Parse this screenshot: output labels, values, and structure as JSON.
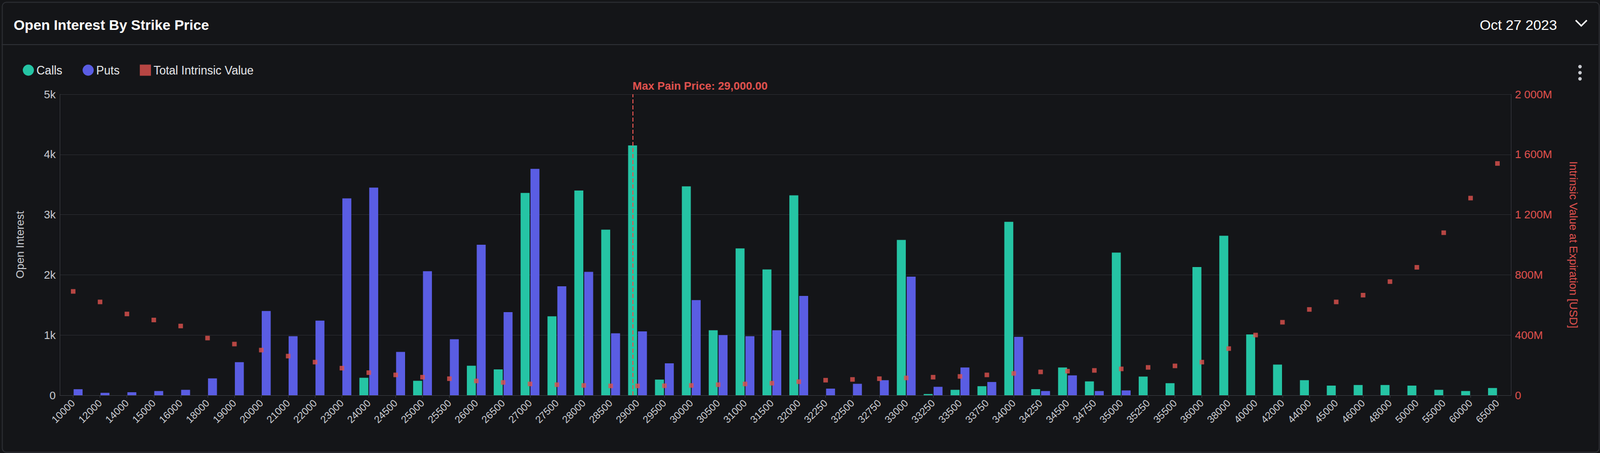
{
  "chart_data": {
    "type": "bar",
    "title": "Open Interest By Strike Price",
    "subtitle": "Oct 27 2023",
    "ylabel": "Open Interest",
    "y2label": "Intrinsic Value at Expiration [USD]",
    "categories": [
      "10000",
      "12000",
      "14000",
      "15000",
      "16000",
      "18000",
      "19000",
      "20000",
      "21000",
      "22000",
      "23000",
      "24000",
      "24500",
      "25000",
      "25500",
      "26000",
      "26500",
      "27000",
      "27500",
      "28000",
      "28500",
      "29000",
      "29500",
      "30000",
      "30500",
      "31000",
      "31500",
      "32000",
      "32250",
      "32500",
      "32750",
      "33000",
      "33250",
      "33500",
      "33750",
      "34000",
      "34250",
      "34500",
      "34750",
      "35000",
      "35250",
      "35500",
      "36000",
      "38000",
      "40000",
      "42000",
      "44000",
      "45000",
      "46000",
      "48000",
      "50000",
      "55000",
      "60000",
      "65000"
    ],
    "series": [
      {
        "name": "Calls",
        "type": "bar",
        "color": "#25c4a4",
        "values": [
          0,
          0,
          0,
          0,
          0,
          0,
          0,
          0,
          0,
          0,
          0,
          290,
          0,
          240,
          0,
          490,
          430,
          3360,
          1310,
          3400,
          2750,
          4150,
          260,
          3470,
          1080,
          2440,
          2090,
          3320,
          0,
          0,
          0,
          2580,
          20,
          90,
          150,
          2880,
          100,
          460,
          230,
          2370,
          310,
          200,
          2130,
          2650,
          1010,
          510,
          250,
          160,
          170,
          170,
          160,
          90,
          70,
          120
        ]
      },
      {
        "name": "Puts",
        "type": "bar",
        "color": "#5a5de3",
        "values": [
          100,
          40,
          50,
          70,
          90,
          280,
          550,
          1400,
          980,
          1240,
          3270,
          3450,
          720,
          2060,
          930,
          2500,
          1380,
          3760,
          1810,
          2050,
          1030,
          1060,
          530,
          1580,
          1000,
          980,
          1080,
          1650,
          110,
          190,
          250,
          1970,
          140,
          460,
          220,
          970,
          70,
          330,
          70,
          80,
          0,
          0,
          0,
          0,
          0,
          0,
          0,
          0,
          0,
          0,
          0,
          0,
          0,
          0
        ]
      },
      {
        "name": "Total Intrinsic Value",
        "type": "scatter",
        "axis": "y2",
        "marker": "square",
        "color": "#e0524f",
        "values": [
          690000000,
          620000000,
          540000000,
          500000000,
          460000000,
          380000000,
          340000000,
          300000000,
          260000000,
          220000000,
          180000000,
          150000000,
          135000000,
          120000000,
          110000000,
          95000000,
          85000000,
          75000000,
          70000000,
          65000000,
          62000000,
          62000000,
          63000000,
          65000000,
          70000000,
          75000000,
          80000000,
          90000000,
          100000000,
          105000000,
          110000000,
          115000000,
          120000000,
          125000000,
          135000000,
          145000000,
          155000000,
          160000000,
          165000000,
          175000000,
          185000000,
          195000000,
          220000000,
          310000000,
          400000000,
          485000000,
          570000000,
          620000000,
          665000000,
          755000000,
          850000000,
          1080000000,
          1310000000,
          1540000000
        ]
      }
    ],
    "annotations": [
      {
        "x": "29000",
        "label": "Max Pain Price: 29,000.00",
        "color": "#e0524f",
        "line_style": "dashed"
      }
    ],
    "ylim": [
      0,
      5000
    ],
    "yticks": [
      0,
      {
        "value": 1000,
        "label": "1k"
      },
      {
        "value": 2000,
        "label": "2k"
      },
      {
        "value": 3000,
        "label": "3k"
      },
      {
        "value": 4000,
        "label": "4k"
      },
      {
        "value": 5000,
        "label": "5k"
      }
    ],
    "y2lim": [
      0,
      2000000000
    ],
    "y2ticks": [
      0,
      {
        "value": 400000000,
        "label": "400M"
      },
      {
        "value": 800000000,
        "label": "800M"
      },
      {
        "value": 1200000000,
        "label": "1 200M"
      },
      {
        "value": 1600000000,
        "label": "1 600M"
      },
      {
        "value": 2000000000,
        "label": "2 000M"
      }
    ],
    "grid": true,
    "legend": "top-left"
  }
}
